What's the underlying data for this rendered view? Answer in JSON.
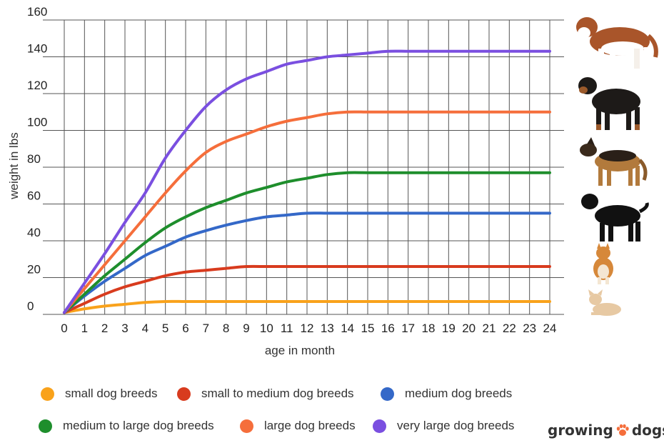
{
  "chart_data": {
    "type": "line",
    "title": "",
    "xlabel": "age in month",
    "ylabel": "weight in lbs",
    "xlim": [
      0,
      24
    ],
    "ylim": [
      0,
      160
    ],
    "x_ticks": [
      "0",
      "1",
      "2",
      "3",
      "4",
      "5",
      "6",
      "7",
      "8",
      "9",
      "10",
      "11",
      "12",
      "13",
      "14",
      "15",
      "16",
      "17",
      "18",
      "19",
      "20",
      "21",
      "22",
      "23",
      "24"
    ],
    "y_ticks": [
      "0",
      "20",
      "40",
      "60",
      "80",
      "100",
      "120",
      "140",
      "160"
    ],
    "grid": true,
    "legend_position": "bottom",
    "x": [
      0,
      1,
      2,
      3,
      4,
      5,
      6,
      7,
      8,
      9,
      10,
      11,
      12,
      13,
      14,
      15,
      16,
      17,
      18,
      19,
      20,
      21,
      22,
      23,
      24
    ],
    "series": [
      {
        "name": "small dog breeds",
        "color": "#F9A21B",
        "values": [
          1,
          3,
          4.5,
          5.5,
          6.5,
          7,
          7,
          7,
          7,
          7,
          7,
          7,
          7,
          7,
          7,
          7,
          7,
          7,
          7,
          7,
          7,
          7,
          7,
          7,
          7
        ]
      },
      {
        "name": "small to medium dog breeds",
        "color": "#D83B1E",
        "values": [
          1,
          6,
          11,
          15,
          18,
          21,
          23,
          24,
          25,
          26,
          26,
          26,
          26,
          26,
          26,
          26,
          26,
          26,
          26,
          26,
          26,
          26,
          26,
          26,
          26
        ]
      },
      {
        "name": "medium dog breeds",
        "color": "#3468C8",
        "values": [
          1,
          10,
          18,
          25,
          32,
          37,
          42,
          45.5,
          48.5,
          51,
          53,
          54,
          55,
          55,
          55,
          55,
          55,
          55,
          55,
          55,
          55,
          55,
          55,
          55,
          55
        ]
      },
      {
        "name": "medium to large dog breeds",
        "color": "#1E8E2C",
        "values": [
          1,
          11,
          21,
          30,
          39,
          47,
          53,
          58,
          62,
          66,
          69,
          72,
          74,
          76,
          77,
          77,
          77,
          77,
          77,
          77,
          77,
          77,
          77,
          77,
          77
        ]
      },
      {
        "name": "large dog breeds",
        "color": "#F56E3B",
        "values": [
          1,
          14,
          27,
          40,
          53,
          66,
          78,
          88,
          94,
          98,
          102,
          105,
          107,
          109,
          110,
          110,
          110,
          110,
          110,
          110,
          110,
          110,
          110,
          110,
          110
        ]
      },
      {
        "name": "very large dog breeds",
        "color": "#7A4FE0",
        "values": [
          1,
          17,
          33,
          50,
          66,
          85,
          100,
          113,
          122,
          128,
          132,
          136,
          138,
          140,
          141,
          142,
          143,
          143,
          143,
          143,
          143,
          143,
          143,
          143,
          143
        ]
      }
    ]
  },
  "legend_rows": [
    [
      {
        "label": "small dog breeds",
        "color": "#F9A21B"
      },
      {
        "label": "small to medium dog breeds",
        "color": "#D83B1E"
      },
      {
        "label": "medium dog breeds",
        "color": "#3468C8"
      }
    ],
    [
      {
        "label": "medium to large dog breeds",
        "color": "#1E8E2C"
      },
      {
        "label": "large dog breeds",
        "color": "#F56E3B"
      },
      {
        "label": "very large dog breeds",
        "color": "#7A4FE0"
      }
    ]
  ],
  "brand": {
    "part1": "growing",
    "part2": "dogs",
    "paw_icon": "paw-icon",
    "paw_color": "#F56E3B"
  },
  "dog_images": [
    {
      "name": "saint-bernard-photo"
    },
    {
      "name": "rottweiler-photo"
    },
    {
      "name": "german-shepherd-photo"
    },
    {
      "name": "labrador-photo"
    },
    {
      "name": "shiba-inu-photo"
    },
    {
      "name": "chihuahua-photo"
    }
  ]
}
